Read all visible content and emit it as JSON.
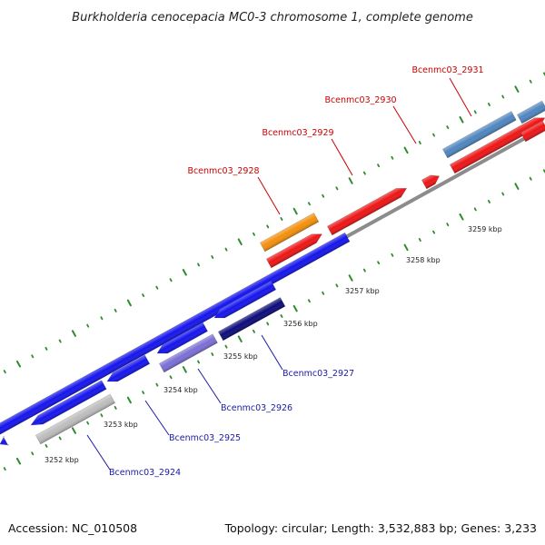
{
  "title": "Burkholderia cenocepacia MC0-3 chromosome 1, complete genome",
  "footer": {
    "accession": "Accession: NC_010508",
    "summary": "Topology: circular; Length: 3,532,883 bp; Genes: 3,233"
  },
  "colors": {
    "backbone": "#8c8c8c",
    "tick": "#2e8b2e",
    "forward_label": "#cc0000",
    "reverse_label": "#1a1aa6"
  },
  "kbp_markers": [
    {
      "label": "3252 kbp"
    },
    {
      "label": "3253 kbp"
    },
    {
      "label": "3254 kbp"
    },
    {
      "label": "3255 kbp"
    },
    {
      "label": "3256 kbp"
    },
    {
      "label": "3257 kbp"
    },
    {
      "label": "3258 kbp"
    },
    {
      "label": "3259 kbp"
    }
  ],
  "genes": [
    {
      "label": "",
      "strand": "reverse",
      "color": "#1515ee"
    },
    {
      "label": "",
      "strand": "reverse",
      "color": "#1515ee"
    },
    {
      "label": "",
      "strand": "reverse",
      "color": "#1515ee"
    },
    {
      "label": "",
      "strand": "reverse",
      "color": "#1515ee"
    },
    {
      "label": "",
      "strand": "reverse",
      "color": "#1515ee"
    },
    {
      "label": "",
      "strand": "reverse",
      "color": "#1515ee"
    },
    {
      "label": "Bcenmc03_2924",
      "strand": "reverse",
      "color": "#bdbdbd"
    },
    {
      "label": "Bcenmc03_2925",
      "strand": "reverse",
      "color": "#1515ee"
    },
    {
      "label": "Bcenmc03_2926",
      "strand": "reverse",
      "color": "#7b6fd6"
    },
    {
      "label": "Bcenmc03_2927",
      "strand": "reverse",
      "color": "#0c0c7a"
    },
    {
      "label": "Bcenmc03_2928",
      "strand": "forward",
      "color": "#f4900c"
    },
    {
      "label": "",
      "strand": "forward",
      "color": "#ee1515"
    },
    {
      "label": "Bcenmc03_2929",
      "strand": "forward",
      "color": "#ee1515"
    },
    {
      "label": "Bcenmc03_2930",
      "strand": "forward",
      "color": "#ee1515"
    },
    {
      "label": "Bcenmc03_2931",
      "strand": "forward",
      "color": "#4f86c0"
    },
    {
      "label": "",
      "strand": "forward",
      "color": "#ee1515"
    },
    {
      "label": "",
      "strand": "forward",
      "color": "#4f86c0"
    },
    {
      "label": "",
      "strand": "forward",
      "color": "#ee1515"
    }
  ]
}
